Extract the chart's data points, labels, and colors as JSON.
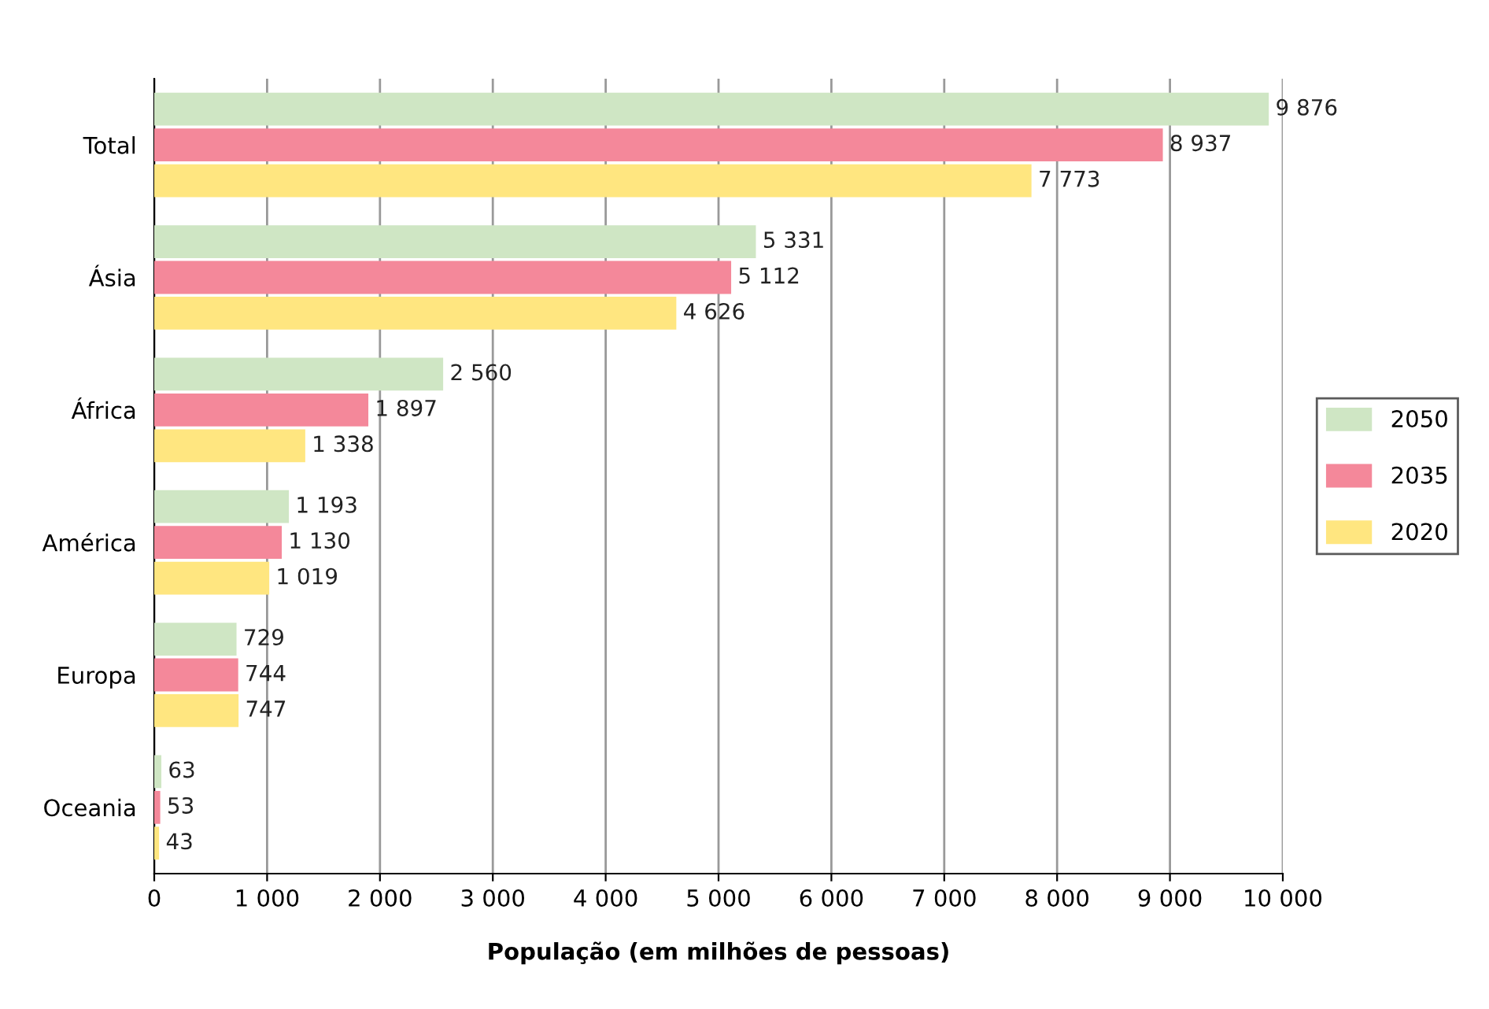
{
  "chart_data": {
    "type": "bar",
    "orientation": "horizontal",
    "xlabel": "População (em milhões de pessoas)",
    "categories": [
      "Total",
      "Ásia",
      "África",
      "América",
      "Europa",
      "Oceania"
    ],
    "series": [
      {
        "name": "2050",
        "color": "#cfe6c4",
        "values": [
          9876,
          5331,
          2560,
          1193,
          729,
          63
        ],
        "value_labels": [
          "9 876",
          "5 331",
          "2 560",
          "1 193",
          "729",
          "63"
        ]
      },
      {
        "name": "2035",
        "color": "#f4889a",
        "values": [
          8937,
          5112,
          1897,
          1130,
          744,
          53
        ],
        "value_labels": [
          "8 937",
          "5 112",
          "1 897",
          "1 130",
          "744",
          "53"
        ]
      },
      {
        "name": "2020",
        "color": "#ffe680",
        "values": [
          7773,
          4626,
          1338,
          1019,
          747,
          43
        ],
        "value_labels": [
          "7 773",
          "4 626",
          "1 338",
          "1 019",
          "747",
          "43"
        ]
      }
    ],
    "xlim": [
      0,
      10000
    ],
    "xticks": [
      0,
      {
        "value": 1000,
        "label": "1 000"
      },
      {
        "value": 2000,
        "label": "2 000"
      },
      {
        "value": 3000,
        "label": "3 000"
      },
      {
        "value": 4000,
        "label": "4 000"
      },
      {
        "value": 5000,
        "label": "5 000"
      },
      {
        "value": 6000,
        "label": "6 000"
      },
      {
        "value": 7000,
        "label": "7 000"
      },
      {
        "value": 8000,
        "label": "8 000"
      },
      {
        "value": 9000,
        "label": "9 000"
      },
      {
        "value": 10000,
        "label": "10 000"
      }
    ],
    "grid": "x",
    "legend": "right"
  }
}
